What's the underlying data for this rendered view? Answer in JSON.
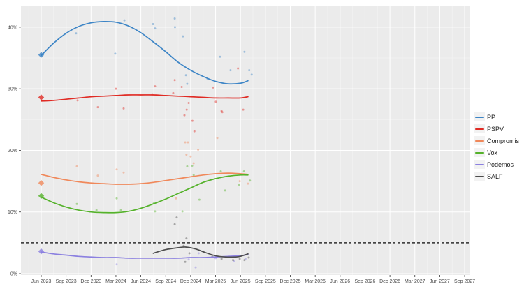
{
  "chart_data": {
    "type": "scatter",
    "subtype": "polls-with-smoothed-trend-lines",
    "title": "",
    "xlabel": "",
    "ylabel": "",
    "x_tick_labels": [
      "Jun 2023",
      "Sep 2023",
      "Dec 2023",
      "Mar 2024",
      "Jun 2024",
      "Sep 2024",
      "Dec 2024",
      "Mar 2025",
      "Jun 2025",
      "Sep 2025",
      "Dec 2025",
      "Mar 2026",
      "Jun 2026",
      "Sep 2026",
      "Dec 2026",
      "Mar 2027",
      "Jun 2027",
      "Sep 2027"
    ],
    "y_ticks": [
      0,
      10,
      20,
      30,
      40
    ],
    "y_tick_labels": [
      "0%",
      "10%",
      "20%",
      "30%",
      "40%"
    ],
    "ylim": [
      -0.6,
      43.6
    ],
    "x_unit": "quarters since Jun 2023",
    "grid": "on",
    "legend_position": "right",
    "panel_bg": "#ebebeb",
    "grid_major_color": "#ffffff",
    "grid_minor_color": "#f3f3f3",
    "axis_text_color": "#4d4d4d",
    "threshold_line": {
      "value": 5,
      "style": "dashed",
      "color": "#2e2e2e"
    },
    "series": [
      {
        "name": "PP",
        "color": "#3d85c6",
        "election_result": {
          "q": 0,
          "value": 35.5
        },
        "trend": [
          [
            0,
            35.4
          ],
          [
            0.5,
            37.4
          ],
          [
            1,
            39.0
          ],
          [
            1.5,
            40.1
          ],
          [
            2,
            40.7
          ],
          [
            2.5,
            40.9
          ],
          [
            3,
            40.8
          ],
          [
            3.5,
            40.2
          ],
          [
            4,
            39.1
          ],
          [
            4.5,
            37.6
          ],
          [
            5,
            36.0
          ],
          [
            5.5,
            34.3
          ],
          [
            6,
            33.0
          ],
          [
            6.5,
            32.0
          ],
          [
            7,
            31.2
          ],
          [
            7.5,
            30.8
          ],
          [
            8,
            30.9
          ],
          [
            8.3,
            31.3
          ]
        ],
        "polls": [
          [
            1.4,
            39.0
          ],
          [
            2.97,
            35.7
          ],
          [
            3.34,
            41.1
          ],
          [
            4.49,
            40.5
          ],
          [
            4.57,
            39.8
          ],
          [
            5.36,
            41.4
          ],
          [
            5.37,
            40.0
          ],
          [
            5.69,
            38.5
          ],
          [
            5.81,
            32.2
          ],
          [
            5.86,
            30.8
          ],
          [
            6.68,
            31.6
          ],
          [
            7.18,
            35.2
          ],
          [
            7.6,
            33.0
          ],
          [
            8.16,
            36.0
          ],
          [
            8.35,
            33.0
          ],
          [
            8.45,
            32.3
          ]
        ]
      },
      {
        "name": "PSPV",
        "color": "#e02b24",
        "election_result": {
          "q": 0,
          "value": 28.6
        },
        "trend": [
          [
            0,
            28.0
          ],
          [
            0.5,
            28.1
          ],
          [
            1,
            28.3
          ],
          [
            1.5,
            28.5
          ],
          [
            2,
            28.7
          ],
          [
            2.5,
            28.8
          ],
          [
            3,
            28.9
          ],
          [
            3.5,
            29.0
          ],
          [
            4,
            29.0
          ],
          [
            4.5,
            29.0
          ],
          [
            5,
            28.9
          ],
          [
            5.5,
            28.8
          ],
          [
            6,
            28.7
          ],
          [
            6.5,
            28.6
          ],
          [
            7,
            28.5
          ],
          [
            7.5,
            28.5
          ],
          [
            8,
            28.5
          ],
          [
            8.3,
            28.7
          ]
        ],
        "polls": [
          [
            1.46,
            28.1
          ],
          [
            2.27,
            27.0
          ],
          [
            3.0,
            30.0
          ],
          [
            3.31,
            26.8
          ],
          [
            4.46,
            29.1
          ],
          [
            4.57,
            30.4
          ],
          [
            5.3,
            29.3
          ],
          [
            5.36,
            31.4
          ],
          [
            5.64,
            30.3
          ],
          [
            5.75,
            25.7
          ],
          [
            5.84,
            26.6
          ],
          [
            5.92,
            27.7
          ],
          [
            6.07,
            24.8
          ],
          [
            6.15,
            23.1
          ],
          [
            6.9,
            30.2
          ],
          [
            7.01,
            27.9
          ],
          [
            7.24,
            26.4
          ],
          [
            7.27,
            26.2
          ],
          [
            7.9,
            33.3
          ],
          [
            8.11,
            26.6
          ]
        ]
      },
      {
        "name": "Compromis",
        "color": "#f0885a",
        "election_result": {
          "q": 0,
          "value": 14.7
        },
        "trend": [
          [
            0,
            16.1
          ],
          [
            0.5,
            15.6
          ],
          [
            1,
            15.2
          ],
          [
            1.5,
            14.9
          ],
          [
            2,
            14.7
          ],
          [
            2.5,
            14.6
          ],
          [
            3,
            14.5
          ],
          [
            3.5,
            14.5
          ],
          [
            4,
            14.6
          ],
          [
            4.5,
            14.8
          ],
          [
            5,
            15.1
          ],
          [
            5.5,
            15.4
          ],
          [
            6,
            15.7
          ],
          [
            6.5,
            16.0
          ],
          [
            7,
            16.2
          ],
          [
            7.5,
            16.3
          ],
          [
            8,
            16.2
          ],
          [
            8.3,
            16.1
          ]
        ],
        "polls": [
          [
            1.43,
            17.4
          ],
          [
            2.27,
            15.9
          ],
          [
            3.03,
            16.9
          ],
          [
            3.31,
            16.4
          ],
          [
            5.41,
            12.2
          ],
          [
            5.78,
            21.3
          ],
          [
            5.83,
            19.3
          ],
          [
            5.89,
            21.3
          ],
          [
            6.0,
            19.0
          ],
          [
            6.12,
            17.9
          ],
          [
            6.3,
            20.1
          ],
          [
            7.07,
            22.0
          ],
          [
            7.97,
            15.0
          ],
          [
            8.3,
            14.6
          ]
        ]
      },
      {
        "name": "Vox",
        "color": "#55b22b",
        "election_result": {
          "q": 0,
          "value": 12.6
        },
        "trend": [
          [
            0,
            12.4
          ],
          [
            0.5,
            11.5
          ],
          [
            1,
            10.8
          ],
          [
            1.5,
            10.3
          ],
          [
            2,
            10.0
          ],
          [
            2.5,
            9.9
          ],
          [
            3,
            9.9
          ],
          [
            3.5,
            10.1
          ],
          [
            4,
            10.6
          ],
          [
            4.5,
            11.3
          ],
          [
            5,
            12.1
          ],
          [
            5.5,
            13.0
          ],
          [
            6,
            13.9
          ],
          [
            6.5,
            14.8
          ],
          [
            7,
            15.4
          ],
          [
            7.5,
            15.8
          ],
          [
            8,
            16.0
          ],
          [
            8.3,
            16.0
          ]
        ],
        "polls": [
          [
            1.43,
            11.3
          ],
          [
            2.22,
            10.3
          ],
          [
            3.03,
            12.2
          ],
          [
            3.2,
            10.3
          ],
          [
            4.52,
            11.4
          ],
          [
            4.57,
            10.1
          ],
          [
            5.67,
            10.1
          ],
          [
            5.86,
            17.4
          ],
          [
            6.06,
            17.5
          ],
          [
            6.12,
            16.0
          ],
          [
            6.35,
            12.0
          ],
          [
            7.21,
            16.6
          ],
          [
            7.38,
            13.5
          ],
          [
            7.95,
            14.4
          ],
          [
            8.14,
            16.6
          ],
          [
            8.38,
            15.1
          ]
        ]
      },
      {
        "name": "Podemos",
        "color": "#8b80e0",
        "election_result": {
          "q": 0,
          "value": 3.6
        },
        "trend": [
          [
            0,
            3.5
          ],
          [
            0.5,
            3.2
          ],
          [
            1,
            3.0
          ],
          [
            1.5,
            2.8
          ],
          [
            2,
            2.7
          ],
          [
            2.5,
            2.6
          ],
          [
            3,
            2.6
          ],
          [
            3.5,
            2.5
          ],
          [
            4,
            2.5
          ],
          [
            4.5,
            2.5
          ],
          [
            5,
            2.5
          ],
          [
            5.5,
            2.5
          ],
          [
            6,
            2.6
          ],
          [
            6.5,
            2.6
          ],
          [
            7,
            2.7
          ],
          [
            7.5,
            2.8
          ],
          [
            8,
            2.9
          ],
          [
            8.3,
            3.1
          ]
        ],
        "polls": [
          [
            3.03,
            1.5
          ],
          [
            5.92,
            2.3
          ],
          [
            6.2,
            1.0
          ],
          [
            6.32,
            3.3
          ],
          [
            7.0,
            2.5
          ],
          [
            7.73,
            2.0
          ],
          [
            8.2,
            2.4
          ]
        ]
      },
      {
        "name": "SALF",
        "color": "#4d4d4d",
        "election_result": null,
        "trend": [
          [
            4.5,
            3.3
          ],
          [
            5,
            3.9
          ],
          [
            5.5,
            4.2
          ],
          [
            5.8,
            4.3
          ],
          [
            6.2,
            4.0
          ],
          [
            6.6,
            3.4
          ],
          [
            7,
            2.9
          ],
          [
            7.4,
            2.7
          ],
          [
            7.8,
            2.7
          ],
          [
            8,
            2.8
          ],
          [
            8.3,
            3.2
          ]
        ],
        "polls": [
          [
            5.36,
            8.0
          ],
          [
            5.44,
            9.1
          ],
          [
            5.72,
            4.5
          ],
          [
            5.78,
            1.9
          ],
          [
            5.83,
            5.7
          ],
          [
            5.95,
            3.3
          ],
          [
            6.5,
            3.6
          ],
          [
            6.87,
            2.8
          ],
          [
            7.24,
            2.4
          ],
          [
            7.7,
            2.2
          ],
          [
            7.97,
            2.4
          ],
          [
            8.16,
            2.2
          ],
          [
            8.33,
            2.6
          ]
        ]
      }
    ]
  }
}
